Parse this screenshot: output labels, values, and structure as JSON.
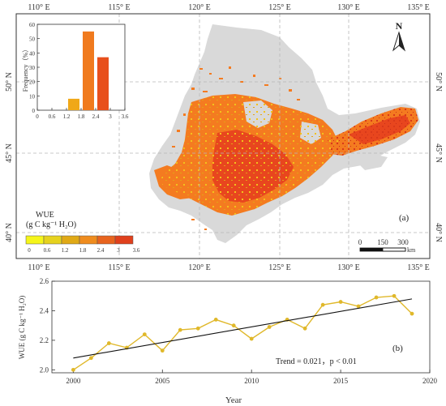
{
  "map": {
    "top_lon_labels": [
      "110° E",
      "115° E",
      "120° E",
      "125° E",
      "130° E",
      "135° E"
    ],
    "bottom_lon_labels": [
      "110° E",
      "115° E",
      "120° E",
      "125° E",
      "130° E",
      "135° E"
    ],
    "lat_labels": [
      "50° N",
      "45° N",
      "40° N"
    ],
    "panel_label": "(a)",
    "north_arrow": "N",
    "scalebar": {
      "labels": [
        "0",
        "150",
        "300"
      ],
      "unit": "km"
    },
    "legend": {
      "title_line1": "WUE",
      "title_line2": "(g C kg⁻¹ H₂O)",
      "tick_labels": [
        "0",
        "0.6",
        "1.2",
        "1.8",
        "2.4",
        "3",
        "3.6"
      ],
      "colors": [
        "#f5f51a",
        "#e6d21e",
        "#e0a916",
        "#ef8c1e",
        "#e8641e",
        "#e0401c"
      ]
    },
    "colors": {
      "land": "#d9d9d9",
      "low": "#f2b21c",
      "mid": "#f47b20",
      "high": "#e8461e"
    }
  },
  "chart_data": [
    {
      "id": "inset-histogram",
      "type": "bar",
      "ylabel": "Frequency（%）",
      "x_ticks": [
        "0",
        "0.6",
        "1.2",
        "1.8",
        "2.4",
        "3",
        "3.6"
      ],
      "y_ticks": [
        "0",
        "10",
        "20",
        "30",
        "40",
        "50",
        "60"
      ],
      "ylim": [
        0,
        60
      ],
      "xlim": [
        0,
        3.6
      ],
      "bins": [
        {
          "from": 1.2,
          "to": 1.8,
          "value": 8,
          "color": "#f0a818"
        },
        {
          "from": 1.8,
          "to": 2.4,
          "value": 55,
          "color": "#f07a1e"
        },
        {
          "from": 2.4,
          "to": 3.0,
          "value": 37,
          "color": "#e8501c"
        }
      ]
    },
    {
      "id": "trend-line",
      "type": "line",
      "panel_label": "(b)",
      "xlabel": "Year",
      "ylabel": "WUE (g C kg⁻¹ H₂O)",
      "x": [
        2000,
        2001,
        2002,
        2003,
        2004,
        2005,
        2006,
        2007,
        2008,
        2009,
        2010,
        2011,
        2012,
        2013,
        2014,
        2015,
        2016,
        2017,
        2018,
        2019
      ],
      "y": [
        2.0,
        2.08,
        2.18,
        2.15,
        2.24,
        2.13,
        2.27,
        2.28,
        2.34,
        2.3,
        2.21,
        2.29,
        2.34,
        2.28,
        2.44,
        2.46,
        2.43,
        2.49,
        2.5,
        2.38
      ],
      "trend": {
        "x": [
          2000,
          2019
        ],
        "y": [
          2.08,
          2.48
        ]
      },
      "xlim": [
        1998.8,
        2020
      ],
      "ylim": [
        1.98,
        2.6
      ],
      "x_ticks": [
        "2000",
        "2005",
        "2010",
        "2015",
        "2020"
      ],
      "y_ticks": [
        "2.0",
        "2.2",
        "2.4",
        "2.6"
      ],
      "annotation": "Trend = 0.021，p < 0.01",
      "line_color": "#e0b82a",
      "trend_color": "#111111"
    }
  ]
}
